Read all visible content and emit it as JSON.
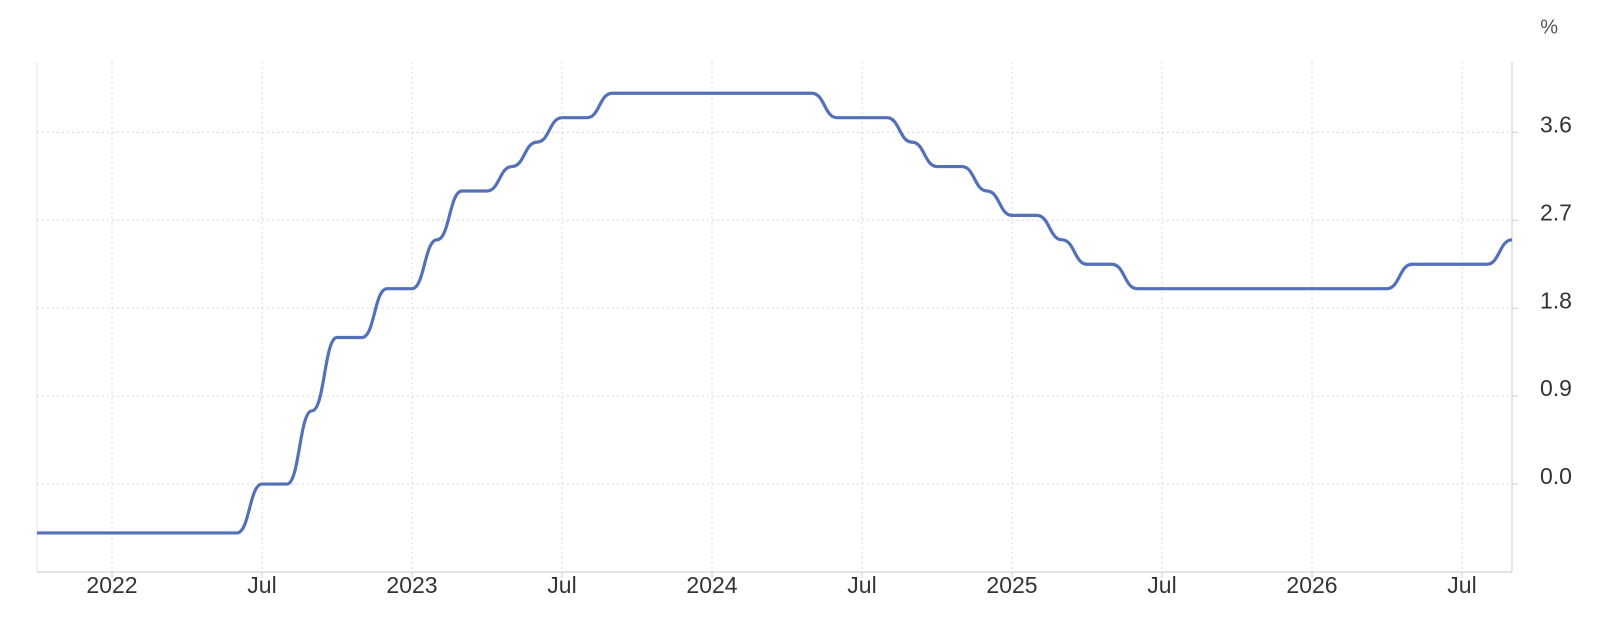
{
  "chart_data": {
    "type": "line",
    "unit": "%",
    "x": [
      "2021-10",
      "2022-06",
      "2022-07",
      "2022-08",
      "2022-09",
      "2022-10",
      "2022-11",
      "2022-12",
      "2023-01",
      "2023-02",
      "2023-03",
      "2023-04",
      "2023-05",
      "2023-06",
      "2023-07",
      "2023-08",
      "2023-09",
      "2024-05",
      "2024-06",
      "2024-07",
      "2024-08",
      "2024-09",
      "2024-10",
      "2024-11",
      "2024-12",
      "2025-01",
      "2025-02",
      "2025-03",
      "2025-04",
      "2025-05",
      "2025-06",
      "2026-04",
      "2026-05",
      "2026-06",
      "2026-07",
      "2026-08",
      "2026-09"
    ],
    "values": [
      -0.5,
      -0.5,
      0.0,
      0.0,
      0.75,
      1.5,
      1.5,
      2.0,
      2.0,
      2.5,
      3.0,
      3.0,
      3.25,
      3.5,
      3.75,
      3.75,
      4.0,
      4.0,
      3.75,
      3.75,
      3.75,
      3.5,
      3.25,
      3.25,
      3.0,
      2.75,
      2.75,
      2.5,
      2.25,
      2.25,
      2.0,
      2.0,
      2.25,
      2.25,
      2.25,
      2.25,
      2.5
    ],
    "color": "#5470b8",
    "xlim": [
      "2021-10",
      "2026-09"
    ],
    "xticks": [
      {
        "value": "2022-01",
        "label": "2022"
      },
      {
        "value": "2022-07",
        "label": "Jul"
      },
      {
        "value": "2023-01",
        "label": "2023"
      },
      {
        "value": "2023-07",
        "label": "Jul"
      },
      {
        "value": "2024-01",
        "label": "2024"
      },
      {
        "value": "2024-07",
        "label": "Jul"
      },
      {
        "value": "2025-01",
        "label": "2025"
      },
      {
        "value": "2025-07",
        "label": "Jul"
      },
      {
        "value": "2026-01",
        "label": "2026"
      },
      {
        "value": "2026-07",
        "label": "Jul"
      }
    ],
    "ylim": [
      -0.9,
      4.32
    ],
    "yticks": [
      {
        "value": 0,
        "label": "0.0"
      },
      0.9,
      1.8,
      2.7,
      3.6
    ],
    "grid": true
  }
}
